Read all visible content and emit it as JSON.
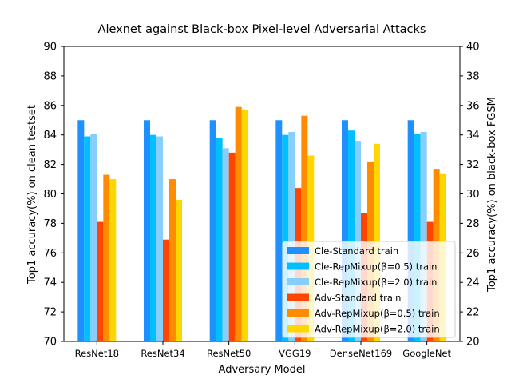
{
  "chart_data": {
    "type": "bar",
    "title": "Alexnet against Black-box Pixel-level Adversarial Attacks",
    "xlabel": "Adversary Model",
    "ylabel_left": "Top1 accuracy(%) on clean testset",
    "ylabel_right": "Top1 accuracy(%) on black-box FGSM",
    "categories": [
      "ResNet18",
      "ResNet34",
      "ResNet50",
      "VGG19",
      "DenseNet169",
      "GoogleNet"
    ],
    "ylim_left": [
      70,
      90
    ],
    "ylim_right": [
      20,
      40
    ],
    "yticks_left": [
      "70",
      "72",
      "74",
      "76",
      "78",
      "80",
      "82",
      "84",
      "86",
      "88",
      "90"
    ],
    "yticks_right": [
      "20",
      "22",
      "24",
      "26",
      "28",
      "30",
      "32",
      "34",
      "36",
      "38",
      "40"
    ],
    "grid": false,
    "legend_position": "bottom-right",
    "series": [
      {
        "name": "Cle-Standard train",
        "axis": "left",
        "color": "#1E90FF",
        "values": [
          85.0,
          85.0,
          85.0,
          85.0,
          85.0,
          85.0
        ]
      },
      {
        "name": "Cle-RepMixup(β=0.5) train",
        "axis": "left",
        "color": "#00BFFF",
        "values": [
          83.9,
          84.0,
          83.8,
          84.0,
          84.3,
          84.1
        ]
      },
      {
        "name": "Cle-RepMixup(β=2.0) train",
        "axis": "left",
        "color": "#87CEFA",
        "values": [
          84.05,
          83.9,
          83.1,
          84.2,
          83.6,
          84.2
        ]
      },
      {
        "name": "Adv-Standard train",
        "axis": "right",
        "color": "#FF4500",
        "values": [
          28.1,
          26.9,
          32.8,
          30.4,
          28.7,
          28.1
        ]
      },
      {
        "name": "Adv-RepMixup(β=0.5) train",
        "axis": "right",
        "color": "#FF8C00",
        "values": [
          31.3,
          31.0,
          35.9,
          35.3,
          32.2,
          31.7
        ]
      },
      {
        "name": "Adv-RepMixup(β=2.0) train",
        "axis": "right",
        "color": "#FFD700",
        "values": [
          31.0,
          29.6,
          35.7,
          32.6,
          33.4,
          31.4
        ]
      }
    ]
  }
}
